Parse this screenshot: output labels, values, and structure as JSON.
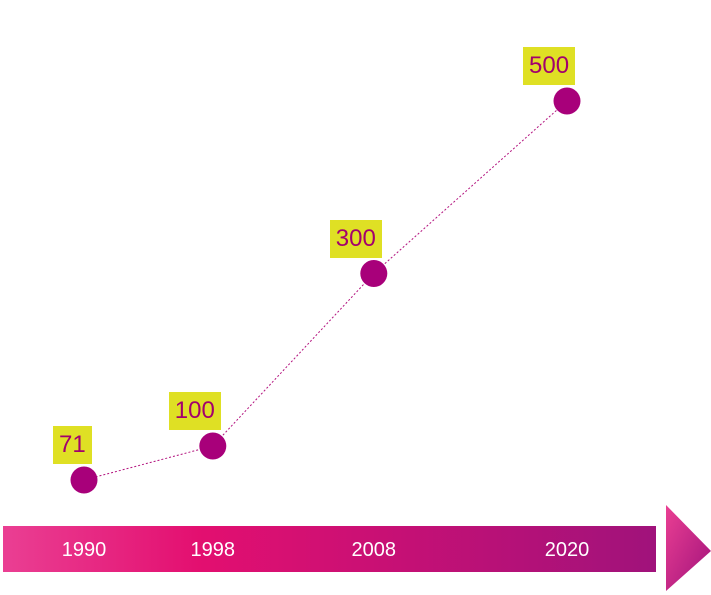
{
  "chart_data": {
    "type": "line",
    "title": "",
    "xlabel": "",
    "ylabel": "",
    "categories": [
      "1990",
      "1998",
      "2008",
      "2020"
    ],
    "values": [
      71,
      100,
      300,
      500
    ],
    "data_labels": [
      "71",
      "100",
      "300",
      "500"
    ],
    "ylim": [
      0,
      500
    ],
    "grid": false,
    "legend": "none",
    "colors": {
      "marker": "#a8007a",
      "line": "#b3127e",
      "label_background": "#dfe024",
      "label_text": "#a3006d",
      "axis_arrow_start": "#ea3f93",
      "axis_arrow_mid": "#e30f70",
      "axis_arrow_end": "#a0127b",
      "tick_text": "#ffffff"
    }
  }
}
